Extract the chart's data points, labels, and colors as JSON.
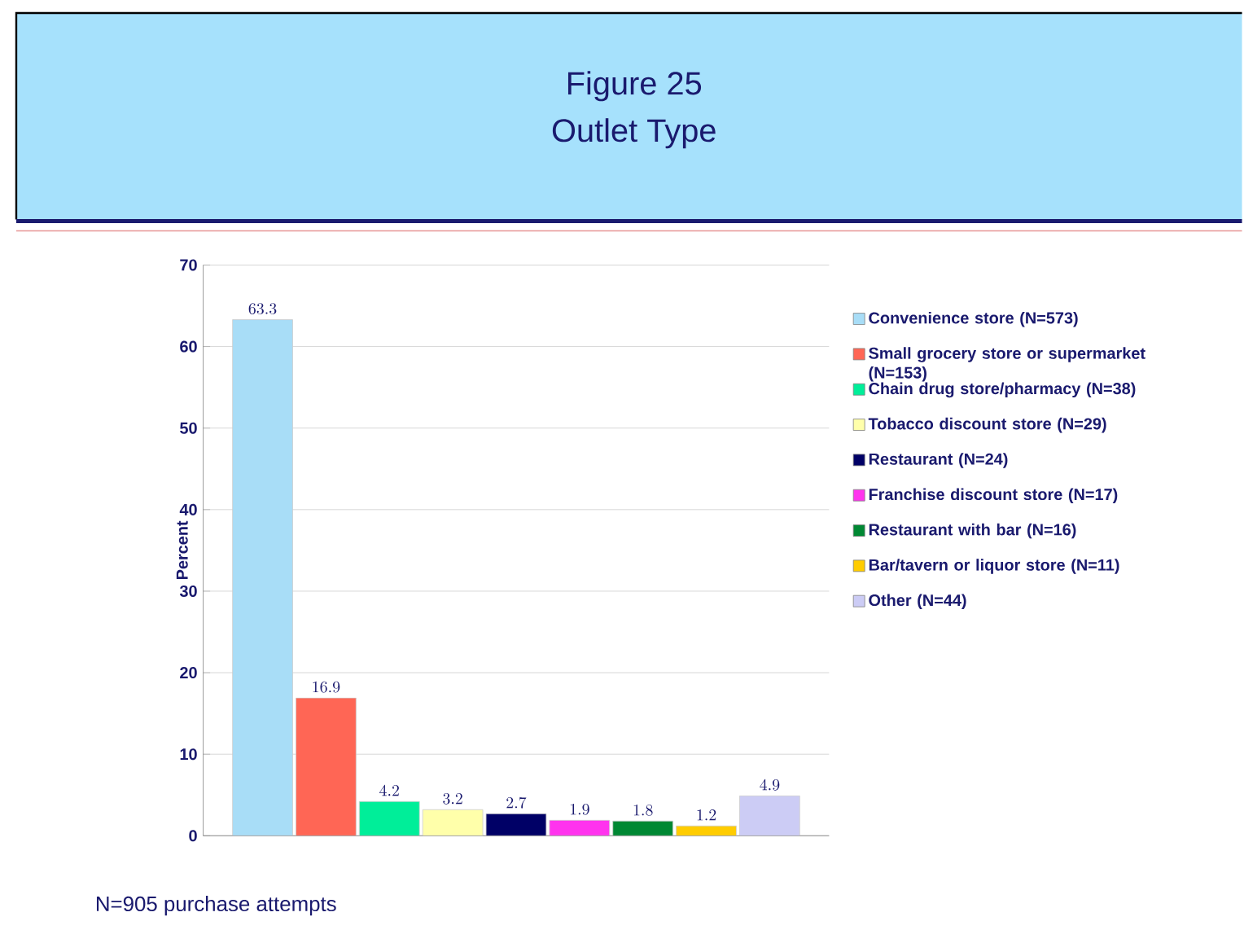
{
  "chart_data": {
    "type": "bar",
    "title": "Figure 25",
    "subtitle": "Outlet Type",
    "ylabel": "Percent",
    "categories": [
      null
    ],
    "series": [
      {
        "name": "Convenience store (N=573)",
        "color": "#a8ddf7",
        "values": [
          63.3
        ]
      },
      {
        "name": "Small grocery store or supermarket (N=153)",
        "color": "#ff6655",
        "values": [
          16.9
        ]
      },
      {
        "name": "Chain drug store/pharmacy (N=38)",
        "color": "#00ee99",
        "values": [
          4.2
        ]
      },
      {
        "name": "Tobacco discount store (N=29)",
        "color": "#ffffaa",
        "values": [
          3.2
        ]
      },
      {
        "name": "Restaurant (N=24)",
        "color": "#000066",
        "values": [
          2.7
        ]
      },
      {
        "name": "Franchise discount store (N=17)",
        "color": "#ff33ee",
        "values": [
          1.9
        ]
      },
      {
        "name": "Restaurant with bar (N=16)",
        "color": "#008833",
        "values": [
          1.8
        ]
      },
      {
        "name": "Bar/tavern or liquor store (N=11)",
        "color": "#ffcc00",
        "values": [
          1.2
        ]
      },
      {
        "name": "Other (N=44)",
        "color": "#ccccf5",
        "values": [
          4.9
        ]
      }
    ],
    "ylim": [
      0,
      70
    ],
    "yticks": [
      0,
      10,
      20,
      30,
      40,
      50,
      60,
      70
    ],
    "grid": "y",
    "legend": "right",
    "data_labels": true,
    "annotations": [
      "N=905 purchase attempts"
    ]
  }
}
